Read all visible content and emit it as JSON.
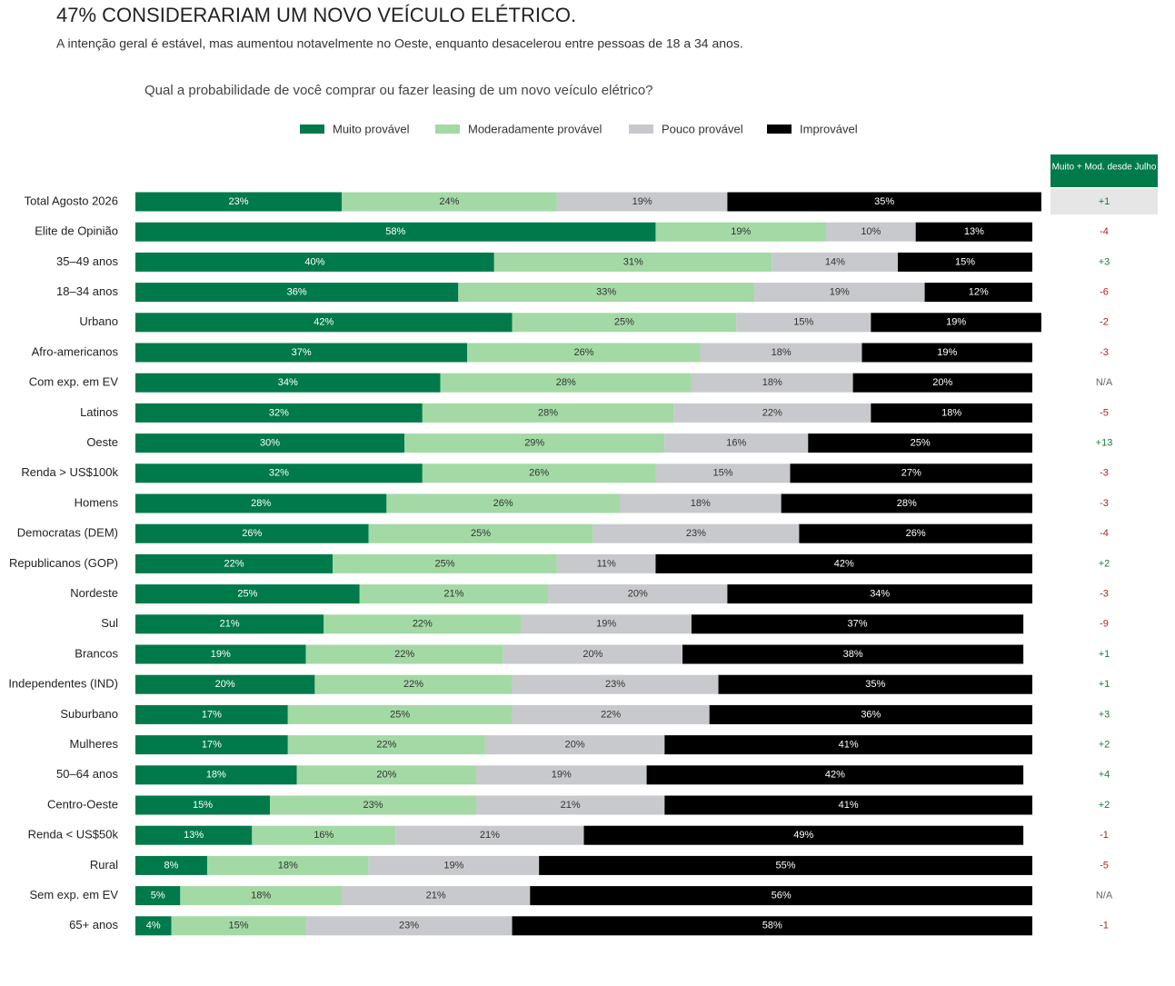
{
  "chart_data": {
    "type": "stacked-bar-horizontal",
    "title": "47% CONSIDERARIAM UM NOVO VEÍCULO ELÉTRICO.",
    "subtitle": "A intenção geral é estável, mas aumentou notavelmente no Oeste, enquanto desacelerou entre pessoas de 18 a 34 anos.",
    "question": "Qual a probabilidade de você comprar ou fazer leasing de um novo veículo elétrico?",
    "change_header": "Muito + Mod. desde Julho",
    "xlim": [
      0,
      100
    ],
    "categories": [
      "Total Agosto 2026",
      "Elite de Opinião",
      "35–49 anos",
      "18–34 anos",
      "Urbano",
      "Afro-americanos",
      "Com exp. em EV",
      "Latinos",
      "Oeste",
      "Renda > US$100k",
      "Homens",
      "Democratas (DEM)",
      "Republicanos (GOP)",
      "Nordeste",
      "Sul",
      "Brancos",
      "Independentes (IND)",
      "Suburbano",
      "Mulheres",
      "50–64 anos",
      "Centro-Oeste",
      "Renda < US$50k",
      "Rural",
      "Sem exp. em EV",
      "65+ anos"
    ],
    "series": [
      {
        "name": "Muito provável",
        "color": "#007a4a",
        "values": [
          23,
          58,
          40,
          36,
          42,
          37,
          34,
          32,
          30,
          32,
          28,
          26,
          22,
          25,
          21,
          19,
          20,
          17,
          17,
          18,
          15,
          13,
          8,
          5,
          4
        ],
        "value_labels": [
          "23%",
          "58%",
          "40%",
          "36%",
          "42%",
          "37%",
          "34%",
          "32%",
          "30%",
          "32%",
          "28%",
          "26%",
          "22%",
          "25%",
          "21%",
          "19%",
          "20%",
          "17%",
          "17%",
          "18%",
          "15%",
          "13%",
          "8%",
          "5%",
          "4%"
        ]
      },
      {
        "name": "Moderadamente provável",
        "color": "#a3d9a5",
        "values": [
          24,
          19,
          31,
          33,
          25,
          26,
          28,
          28,
          29,
          26,
          26,
          25,
          25,
          21,
          22,
          22,
          22,
          25,
          22,
          20,
          23,
          16,
          18,
          18,
          15
        ],
        "value_labels": [
          "24%",
          "19%",
          "31%",
          "33%",
          "25%",
          "26%",
          "28%",
          "28%",
          "29%",
          "26%",
          "26%",
          "25%",
          "25%",
          "21%",
          "22%",
          "22%",
          "22%",
          "25%",
          "22%",
          "20%",
          "23%",
          "16%",
          "18%",
          "18%",
          "15%"
        ]
      },
      {
        "name": "Pouco provável",
        "color": "#c8c9cc",
        "values": [
          19,
          10,
          14,
          19,
          15,
          18,
          18,
          22,
          16,
          15,
          18,
          23,
          11,
          20,
          19,
          20,
          23,
          22,
          20,
          19,
          21,
          21,
          19,
          21,
          23
        ],
        "value_labels": [
          "19%",
          "10%",
          "14%",
          "19%",
          "15%",
          "18%",
          "18%",
          "22%",
          "16%",
          "15%",
          "18%",
          "23%",
          "11%",
          "20%",
          "19%",
          "20%",
          "23%",
          "22%",
          "20%",
          "19%",
          "21%",
          "21%",
          "19%",
          "21%",
          "23%"
        ]
      },
      {
        "name": "Improvável",
        "color": "#000000",
        "values": [
          35,
          13,
          15,
          12,
          19,
          19,
          20,
          18,
          25,
          27,
          28,
          26,
          42,
          34,
          37,
          38,
          35,
          36,
          41,
          42,
          41,
          49,
          55,
          56,
          58
        ],
        "value_labels": [
          "35%",
          "13%",
          "15%",
          "12%",
          "19%",
          "19%",
          "20%",
          "18%",
          "25%",
          "27%",
          "28%",
          "26%",
          "42%",
          "34%",
          "37%",
          "38%",
          "35%",
          "36%",
          "41%",
          "42%",
          "41%",
          "49%",
          "55%",
          "56%",
          "58%"
        ]
      }
    ],
    "changes": [
      "+1",
      "-4",
      "+3",
      "-6",
      "-2",
      "-3",
      "N/A",
      "-5",
      "+13",
      "-3",
      "-3",
      "-4",
      "+2",
      "-3",
      "-9",
      "+1",
      "+1",
      "+3",
      "+2",
      "+4",
      "+2",
      "-1",
      "-5",
      "N/A",
      "-1"
    ]
  }
}
